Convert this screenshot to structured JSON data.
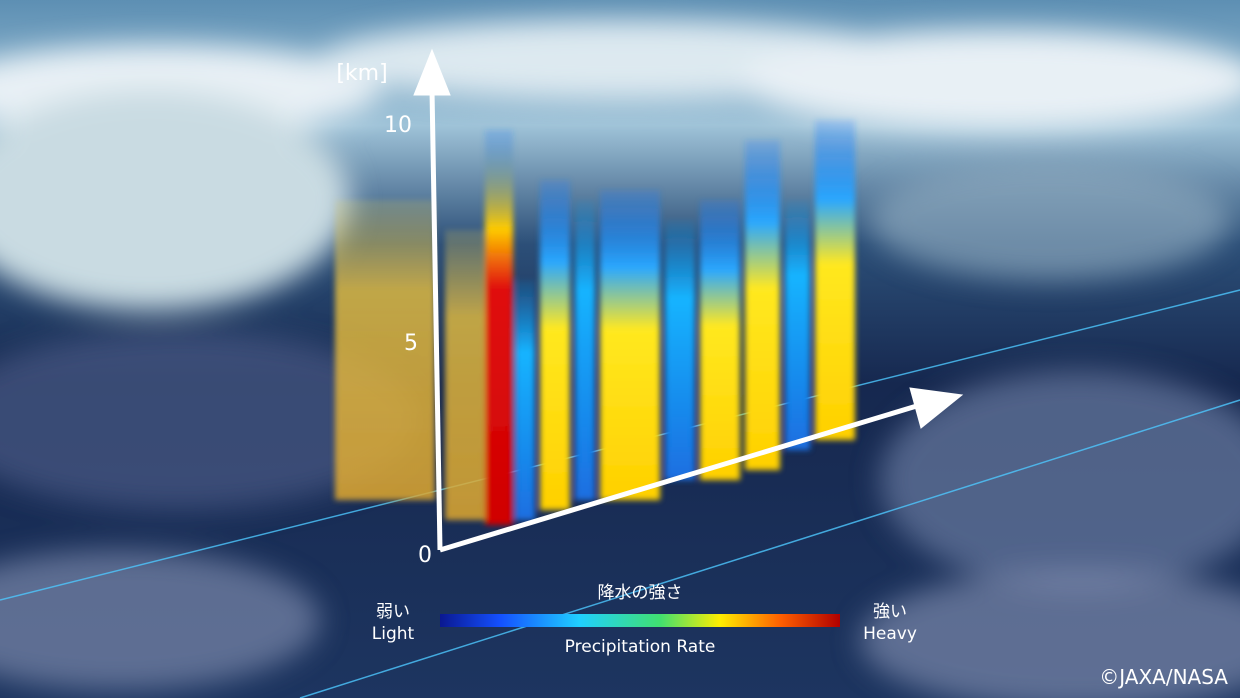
{
  "axis": {
    "unit": "[km]",
    "ticks": [
      10,
      5,
      0
    ]
  },
  "legend": {
    "title": "降水の強さ",
    "low_ja": "弱い",
    "low_en": "Light",
    "high_ja": "強い",
    "high_en": "Heavy",
    "caption": "Precipitation Rate"
  },
  "credit": "©JAXA/NASA"
}
